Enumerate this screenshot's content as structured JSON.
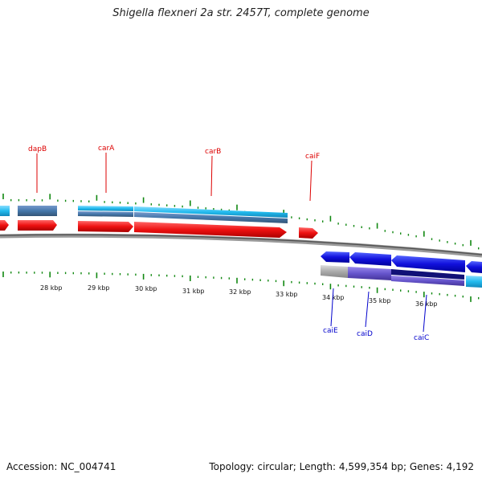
{
  "title": "Shigella flexneri 2a str. 2457T, complete genome",
  "footer": {
    "accession": "Accession: NC_004741",
    "summary": "Topology: circular; Length: 4,599,354 bp; Genes: 4,192"
  },
  "scale_labels": [
    "28 kbp",
    "29 kbp",
    "30 kbp",
    "31 kbp",
    "32 kbp",
    "33 kbp",
    "34 kbp",
    "35 kbp",
    "36 kbp"
  ],
  "forward_genes": [
    "dapB",
    "carA",
    "carB",
    "caiF"
  ],
  "reverse_genes": [
    "caiE",
    "caiD",
    "caiC"
  ],
  "colors": {
    "forward_gene": "#dd0000",
    "reverse_gene": "#0000cc",
    "cds_forward": "#ee1111",
    "cds_reverse": "#1111dd",
    "tick": "#118811",
    "backbone": "#777777",
    "feature_cyan": "#22bbee",
    "feature_steel": "#4477aa",
    "feature_purple": "#6655cc",
    "feature_navy": "#111177",
    "feature_grey": "#aaaaaa"
  }
}
